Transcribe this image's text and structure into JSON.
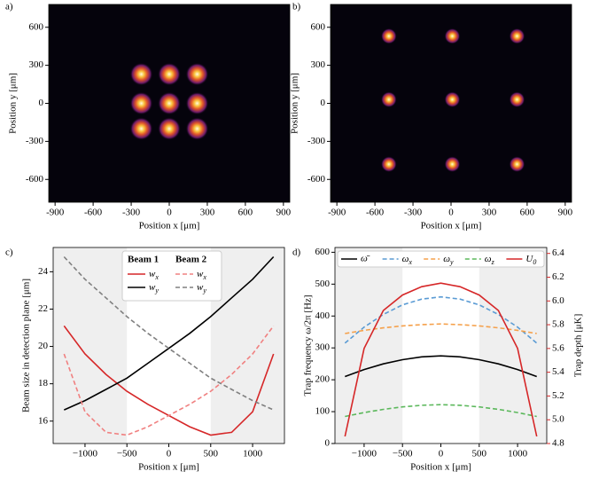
{
  "chart_data": [
    {
      "type": "image",
      "panel_label": "a)",
      "xlabel": "Position x [μm]",
      "ylabel": "Position y [μm]",
      "xlim": [
        -950,
        950
      ],
      "ylim": [
        -780,
        780
      ],
      "xticks": [
        -900,
        -600,
        -300,
        0,
        300,
        600,
        900
      ],
      "yticks": [
        -600,
        -300,
        0,
        300,
        600
      ],
      "x": [
        -220,
        0,
        220,
        -220,
        0,
        220,
        -220,
        0,
        220
      ],
      "y": [
        230,
        230,
        230,
        0,
        0,
        0,
        -200,
        -200,
        -200
      ]
    },
    {
      "type": "image",
      "panel_label": "b)",
      "xlabel": "Position x [μm]",
      "ylabel": "Position y [μm]",
      "xlim": [
        -950,
        950
      ],
      "ylim": [
        -780,
        780
      ],
      "xticks": [
        -900,
        -600,
        -300,
        0,
        300,
        600,
        900
      ],
      "yticks": [
        -600,
        -300,
        0,
        300,
        600
      ],
      "x": [
        -490,
        10,
        520,
        -490,
        10,
        520,
        -490,
        10,
        520
      ],
      "y": [
        530,
        530,
        530,
        30,
        30,
        30,
        -480,
        -480,
        -480
      ]
    },
    {
      "type": "line",
      "panel_label": "c)",
      "xlabel": "Position x [μm]",
      "ylabel": "Beam size in detection plane [μm]",
      "xlim": [
        -1380,
        1380
      ],
      "ylim": [
        14.8,
        25.3
      ],
      "xticks": [
        {
          "value": -1000,
          "label": "−1000"
        },
        {
          "value": -500,
          "label": "−500"
        },
        0,
        500,
        1000
      ],
      "yticks": [
        16,
        18,
        20,
        22,
        24
      ],
      "highlight": [
        -500,
        500
      ],
      "legend_columns": [
        "Beam 1",
        "Beam 2"
      ],
      "x": [
        -1250,
        -1000,
        -750,
        -500,
        -250,
        0,
        250,
        500,
        750,
        1000,
        1250
      ],
      "series": [
        {
          "name": "w_x",
          "color": "#d62728",
          "dashed": false,
          "values": [
            21.1,
            19.6,
            18.5,
            17.6,
            16.9,
            16.3,
            15.7,
            15.25,
            15.4,
            16.5,
            19.6
          ]
        },
        {
          "name": "w_y",
          "color": "#000000",
          "dashed": false,
          "values": [
            16.6,
            17.1,
            17.7,
            18.3,
            19.1,
            19.9,
            20.7,
            21.6,
            22.6,
            23.6,
            24.8
          ]
        },
        {
          "name": "w_x",
          "color": "#f08080",
          "dashed": true,
          "values": [
            19.6,
            16.5,
            15.4,
            15.25,
            15.7,
            16.3,
            16.9,
            17.6,
            18.5,
            19.6,
            21.1
          ]
        },
        {
          "name": "w_y",
          "color": "#808080",
          "dashed": true,
          "values": [
            24.8,
            23.6,
            22.6,
            21.6,
            20.7,
            19.9,
            19.1,
            18.3,
            17.7,
            17.1,
            16.6
          ]
        }
      ]
    },
    {
      "type": "line",
      "panel_label": "d)",
      "xlabel": "Position x [μm]",
      "ylabel": "Trap frequency ω/2π [Hz]",
      "y2label": "Trap depth [μK]",
      "xlim": [
        -1380,
        1380
      ],
      "ylim": [
        0,
        615
      ],
      "y2lim": [
        4.8,
        6.45
      ],
      "y2_color": "#d62728",
      "xticks": [
        {
          "value": -1000,
          "label": "−1000"
        },
        {
          "value": -500,
          "label": "−500"
        },
        0,
        500,
        1000
      ],
      "yticks": [
        0,
        100,
        200,
        300,
        400,
        500,
        600
      ],
      "y2ticks": [
        4.8,
        {
          "value": 5,
          "label": "5.0"
        },
        5.2,
        5.4,
        5.6,
        5.8,
        {
          "value": 6,
          "label": "6.0"
        },
        6.2,
        6.4
      ],
      "highlight": [
        -500,
        500
      ],
      "x": [
        -1250,
        -1000,
        -750,
        -500,
        -250,
        0,
        250,
        500,
        750,
        1000,
        1250
      ],
      "series": [
        {
          "name": "ω̄",
          "color": "#000000",
          "dashed": false,
          "values": [
            210,
            232,
            250,
            263,
            272,
            275,
            272,
            263,
            250,
            232,
            210
          ]
        },
        {
          "name": "ω_x",
          "color": "#5a9bd4",
          "dashed": true,
          "values": [
            315,
            365,
            405,
            435,
            453,
            460,
            453,
            435,
            405,
            365,
            315
          ]
        },
        {
          "name": "ω_y",
          "color": "#f5a04a",
          "dashed": true,
          "values": [
            345,
            355,
            363,
            369,
            373,
            375,
            373,
            369,
            363,
            355,
            345
          ]
        },
        {
          "name": "ω_z",
          "color": "#5cb85c",
          "dashed": true,
          "values": [
            85,
            97,
            107,
            115,
            120,
            122,
            120,
            115,
            107,
            97,
            85
          ]
        },
        {
          "name": "U_0",
          "color": "#d62728",
          "dashed": false,
          "axis": "y2",
          "values": [
            4.86,
            5.6,
            5.92,
            6.05,
            6.12,
            6.15,
            6.12,
            6.05,
            5.92,
            5.6,
            4.86
          ]
        }
      ]
    }
  ]
}
